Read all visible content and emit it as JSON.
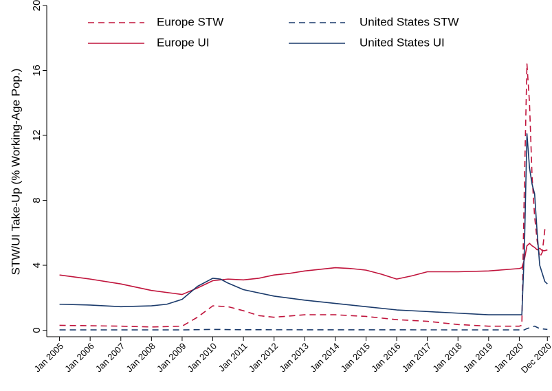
{
  "chart_data": {
    "type": "line",
    "y_label": "STW/UI Take-Up (% Working-Age Pop.)",
    "xlim": [
      "2004-08",
      "2021-01"
    ],
    "xticks": [
      {
        "value": "2005-01",
        "label": "Jan 2005"
      },
      {
        "value": "2006-01",
        "label": "Jan 2006"
      },
      {
        "value": "2007-01",
        "label": "Jan 2007"
      },
      {
        "value": "2008-01",
        "label": "Jan 2008"
      },
      {
        "value": "2009-01",
        "label": "Jan 2009"
      },
      {
        "value": "2010-01",
        "label": "Jan 2010"
      },
      {
        "value": "2011-01",
        "label": "Jan 2011"
      },
      {
        "value": "2012-01",
        "label": "Jan 2012"
      },
      {
        "value": "2013-01",
        "label": "Jan 2013"
      },
      {
        "value": "2014-01",
        "label": "Jan 2014"
      },
      {
        "value": "2015-01",
        "label": "Jan 2015"
      },
      {
        "value": "2016-01",
        "label": "Jan 2016"
      },
      {
        "value": "2017-01",
        "label": "Jan 2017"
      },
      {
        "value": "2018-01",
        "label": "Jan 2018"
      },
      {
        "value": "2019-01",
        "label": "Jan 2019"
      },
      {
        "value": "2020-01",
        "label": "Jan 2020"
      },
      {
        "value": "2020-12",
        "label": "Dec 2020"
      }
    ],
    "ylim": [
      -0.4,
      20
    ],
    "yticks": [
      0,
      4,
      8,
      12,
      16,
      20
    ],
    "grid": false,
    "legend": "top",
    "series": [
      {
        "name": "Europe STW",
        "color": "#c0143c",
        "dashed": true,
        "x": [
          "2005-01",
          "2007-01",
          "2008-01",
          "2009-01",
          "2009-07",
          "2010-01",
          "2010-07",
          "2011-01",
          "2011-07",
          "2012-01",
          "2013-01",
          "2014-01",
          "2015-01",
          "2016-01",
          "2017-01",
          "2018-01",
          "2019-01",
          "2020-01",
          "2020-02",
          "2020-03",
          "2020-04",
          "2020-05",
          "2020-06",
          "2020-07",
          "2020-08",
          "2020-09",
          "2020-10",
          "2020-11",
          "2020-12"
        ],
        "values": [
          0.3,
          0.25,
          0.2,
          0.25,
          0.8,
          1.5,
          1.45,
          1.2,
          0.9,
          0.8,
          0.95,
          0.95,
          0.85,
          0.65,
          0.55,
          0.35,
          0.25,
          0.25,
          0.3,
          9,
          16.4,
          14,
          9.5,
          7,
          5.5,
          4.5,
          4.8,
          6.2,
          6.0
        ]
      },
      {
        "name": "United States STW",
        "color": "#1a3a6b",
        "dashed": true,
        "x": [
          "2005-01",
          "2009-01",
          "2010-01",
          "2011-01",
          "2020-01",
          "2020-03",
          "2020-04",
          "2020-07",
          "2020-09",
          "2020-12"
        ],
        "values": [
          0.02,
          0.02,
          0.05,
          0.03,
          0.02,
          0.02,
          0.1,
          0.25,
          0.1,
          0.05
        ]
      },
      {
        "name": "Europe UI",
        "color": "#c0143c",
        "dashed": false,
        "x": [
          "2005-01",
          "2006-01",
          "2007-01",
          "2008-01",
          "2009-01",
          "2009-07",
          "2010-01",
          "2010-07",
          "2011-01",
          "2011-07",
          "2012-01",
          "2012-07",
          "2013-01",
          "2014-01",
          "2014-07",
          "2015-01",
          "2015-07",
          "2016-01",
          "2016-07",
          "2017-01",
          "2018-01",
          "2019-01",
          "2020-01",
          "2020-02",
          "2020-03",
          "2020-04",
          "2020-05",
          "2020-06",
          "2020-07",
          "2020-08",
          "2020-09",
          "2020-10",
          "2020-11",
          "2020-12"
        ],
        "values": [
          3.4,
          3.15,
          2.85,
          2.45,
          2.2,
          2.6,
          3.05,
          3.15,
          3.1,
          3.2,
          3.4,
          3.5,
          3.65,
          3.85,
          3.8,
          3.7,
          3.45,
          3.15,
          3.35,
          3.6,
          3.6,
          3.65,
          3.8,
          3.85,
          4.35,
          5.2,
          5.35,
          5.2,
          5.1,
          4.95,
          5.05,
          4.9,
          4.9,
          4.95
        ]
      },
      {
        "name": "United States UI",
        "color": "#1a3a6b",
        "dashed": false,
        "x": [
          "2005-01",
          "2006-01",
          "2007-01",
          "2008-01",
          "2008-07",
          "2009-01",
          "2009-07",
          "2010-01",
          "2010-04",
          "2010-07",
          "2011-01",
          "2012-01",
          "2013-01",
          "2014-01",
          "2015-01",
          "2016-01",
          "2017-01",
          "2018-01",
          "2019-01",
          "2020-02",
          "2020-03",
          "2020-04",
          "2020-05",
          "2020-06",
          "2020-07",
          "2020-08",
          "2020-09",
          "2020-10",
          "2020-11",
          "2020-12"
        ],
        "values": [
          1.6,
          1.55,
          1.45,
          1.5,
          1.6,
          1.9,
          2.7,
          3.2,
          3.15,
          2.9,
          2.5,
          2.1,
          1.85,
          1.65,
          1.45,
          1.25,
          1.15,
          1.05,
          0.95,
          0.95,
          5,
          12.1,
          10,
          9,
          8.4,
          6,
          4,
          3.5,
          3,
          2.85
        ]
      }
    ]
  }
}
